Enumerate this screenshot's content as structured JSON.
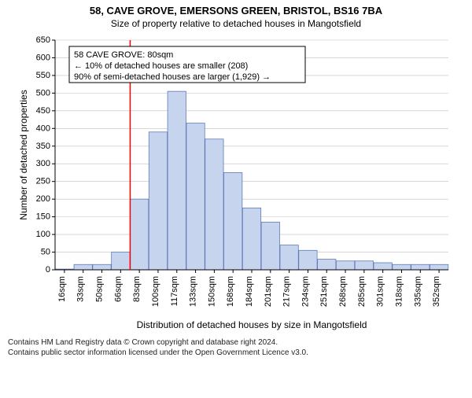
{
  "title": "58, CAVE GROVE, EMERSONS GREEN, BRISTOL, BS16 7BA",
  "subtitle": "Size of property relative to detached houses in Mangotsfield",
  "xlabel": "Distribution of detached houses by size in Mangotsfield",
  "ylabel": "Number of detached properties",
  "footer1": "Contains HM Land Registry data © Crown copyright and database right 2024.",
  "footer2": "Contains public sector information licensed under the Open Government Licence v3.0.",
  "legend": {
    "line1": "58 CAVE GROVE: 80sqm",
    "line2": "← 10% of detached houses are smaller (208)",
    "line3": "90% of semi-detached houses are larger (1,929) →",
    "border_color": "#000000",
    "bg_color": "#ffffff",
    "fontsize": 11
  },
  "chart": {
    "type": "histogram",
    "x_categories": [
      "16sqm",
      "33sqm",
      "50sqm",
      "66sqm",
      "83sqm",
      "100sqm",
      "117sqm",
      "133sqm",
      "150sqm",
      "168sqm",
      "184sqm",
      "201sqm",
      "217sqm",
      "234sqm",
      "251sqm",
      "268sqm",
      "285sqm",
      "301sqm",
      "318sqm",
      "335sqm",
      "352sqm"
    ],
    "values": [
      2,
      15,
      15,
      50,
      200,
      390,
      505,
      415,
      370,
      275,
      175,
      135,
      70,
      55,
      30,
      25,
      25,
      20,
      15,
      15,
      15
    ],
    "ylim": [
      0,
      650
    ],
    "ytick_step": 50,
    "bar_fill": "#c7d4ee",
    "bar_stroke": "#5b7bb8",
    "grid_color": "#bfbfbf",
    "axis_color": "#000000",
    "marker_line_color": "#ff0000",
    "marker_x_index": 4,
    "background_color": "#ffffff",
    "title_fontsize": 13,
    "label_fontsize": 12,
    "tick_fontsize": 11
  }
}
